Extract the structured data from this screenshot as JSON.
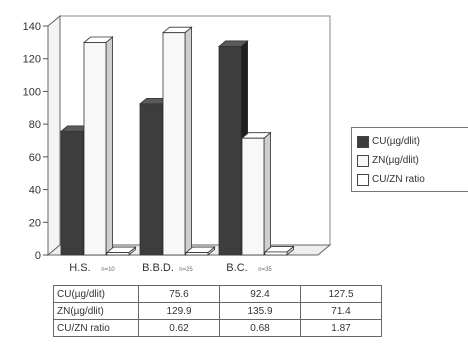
{
  "chart_data": {
    "type": "bar",
    "categories": [
      "H.S.",
      "B.B.D.",
      "B.C."
    ],
    "category_notes": [
      "n=10",
      "n=25",
      "n=35"
    ],
    "series": [
      {
        "name": "CU(µg/dlit)",
        "values": [
          75.6,
          92.4,
          127.5
        ],
        "color": "#3d3d3d"
      },
      {
        "name": "ZN(µg/dlit)",
        "values": [
          129.9,
          135.9,
          71.4
        ],
        "color": "#f8f8f8"
      },
      {
        "name": "CU/ZN ratio",
        "values": [
          0.62,
          0.68,
          1.87
        ],
        "color": "#ffffff"
      }
    ],
    "yticks": [
      "0",
      "20",
      "40",
      "60",
      "80",
      "100",
      "120",
      "140"
    ],
    "ylim": [
      0,
      140
    ],
    "grid": false,
    "legend_position": "right",
    "table": {
      "rows": [
        {
          "label": "CU(µg/dlit)",
          "values": [
            "75.6",
            "92.4",
            "127.5"
          ]
        },
        {
          "label": "ZN(µg/dlit)",
          "values": [
            "129.9",
            "135.9",
            "71.4"
          ]
        },
        {
          "label": "CU/ZN ratio",
          "values": [
            "0.62",
            "0.68",
            "1.87"
          ]
        }
      ]
    }
  }
}
